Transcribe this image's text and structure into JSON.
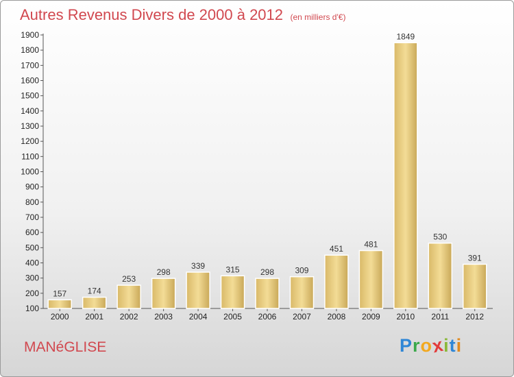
{
  "chart_data": {
    "type": "bar",
    "title": "Autres Revenus Divers de 2000 à 2012",
    "subtitle": "(en milliers d'€)",
    "categories": [
      "2000",
      "2001",
      "2002",
      "2003",
      "2004",
      "2005",
      "2006",
      "2007",
      "2008",
      "2009",
      "2010",
      "2011",
      "2012"
    ],
    "values": [
      157,
      174,
      253,
      298,
      339,
      315,
      298,
      309,
      451,
      481,
      1849,
      530,
      391
    ],
    "ylim": [
      100,
      1900
    ],
    "yticks": [
      100,
      200,
      300,
      400,
      500,
      600,
      700,
      800,
      900,
      1000,
      1100,
      1200,
      1300,
      1400,
      1500,
      1600,
      1700,
      1800,
      1900
    ],
    "grid": false,
    "bar_color": "#e8cc7c"
  },
  "commune": "MANéGLISE",
  "logo": {
    "letters": [
      "P",
      "r",
      "o",
      "x",
      "i",
      "t",
      "i"
    ],
    "colors": [
      "#2e86d6",
      "#3aa84a",
      "#f2a81f",
      "#e23b3b",
      "#8ab83a",
      "#2e86d6",
      "#e08a1f"
    ]
  }
}
